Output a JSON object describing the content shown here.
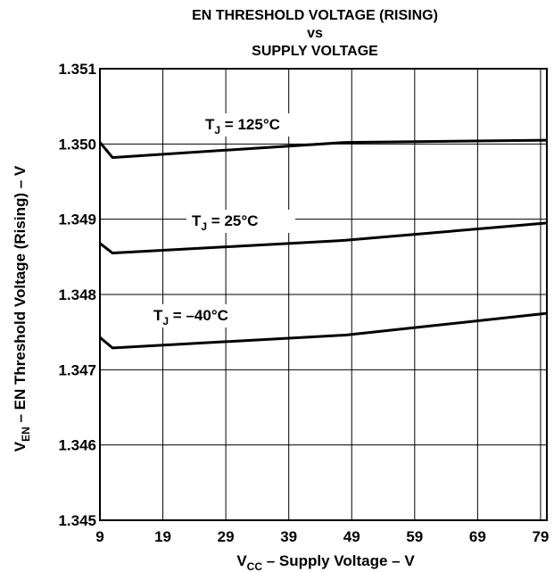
{
  "chart_data": {
    "type": "line",
    "title_lines": [
      "EN THRESHOLD VOLTAGE (RISING)",
      "vs",
      "SUPPLY VOLTAGE"
    ],
    "xlabel": {
      "main": "V",
      "sub": "CC",
      "rest": " – Supply Voltage – V"
    },
    "ylabel": {
      "main": "V",
      "sub": "EN",
      "rest": "  – EN Threshold Voltage (Rising) – V"
    },
    "xlim": [
      9,
      80
    ],
    "ylim": [
      1.345,
      1.351
    ],
    "x_ticks": [
      9,
      19,
      29,
      39,
      49,
      59,
      69,
      79
    ],
    "x_tick_labels": [
      "9",
      "19",
      "29",
      "39",
      "49",
      "59",
      "69",
      "79"
    ],
    "y_ticks": [
      1.345,
      1.346,
      1.347,
      1.348,
      1.349,
      1.35,
      1.351
    ],
    "y_tick_labels": [
      "1.345",
      "1.346",
      "1.347",
      "1.348",
      "1.349",
      "1.350",
      "1.351"
    ],
    "grid": true,
    "series": [
      {
        "name": "T_J = 125°C",
        "label": {
          "main": "T",
          "sub": "J",
          "rest": " = 125°C"
        },
        "x": [
          9,
          11,
          48,
          80
        ],
        "y": [
          1.35002,
          1.34982,
          1.35002,
          1.35005
        ]
      },
      {
        "name": "T_J = 25°C",
        "label": {
          "main": "T",
          "sub": "J",
          "rest": " = 25°C"
        },
        "x": [
          9,
          11,
          48,
          80
        ],
        "y": [
          1.34868,
          1.34855,
          1.34872,
          1.34895
        ]
      },
      {
        "name": "T_J = -40°C",
        "label": {
          "main": "T",
          "sub": "J",
          "rest": " = –40°C"
        },
        "x": [
          9,
          11,
          48,
          80
        ],
        "y": [
          1.34743,
          1.34729,
          1.34746,
          1.34775
        ]
      }
    ]
  }
}
